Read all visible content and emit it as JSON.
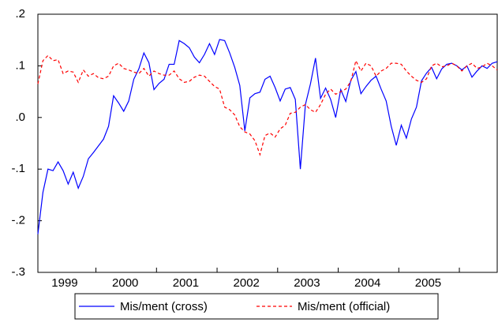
{
  "chart_data": {
    "type": "line",
    "categories": [
      null,
      null,
      null,
      null,
      null,
      "1999",
      null,
      null,
      null,
      null,
      null,
      null,
      null,
      null,
      null,
      null,
      null,
      "2000",
      null,
      null,
      null,
      null,
      null,
      null,
      null,
      null,
      null,
      null,
      null,
      "2001",
      null,
      null,
      null,
      null,
      null,
      null,
      null,
      null,
      null,
      null,
      null,
      "2002",
      null,
      null,
      null,
      null,
      null,
      null,
      null,
      null,
      null,
      null,
      null,
      "2003",
      null,
      null,
      null,
      null,
      null,
      null,
      null,
      null,
      null,
      null,
      null,
      "2004",
      null,
      null,
      null,
      null,
      null,
      null,
      null,
      null,
      null,
      null,
      null,
      "2005",
      null,
      null,
      null,
      null,
      null,
      null,
      null,
      null,
      null,
      null,
      null,
      null,
      null,
      null
    ],
    "series": [
      {
        "name": "Mis/ment (cross)",
        "color": "#0000ff",
        "dash": false,
        "values": [
          -0.226,
          -0.145,
          -0.1,
          -0.103,
          -0.086,
          -0.103,
          -0.129,
          -0.106,
          -0.137,
          -0.114,
          -0.08,
          -0.068,
          -0.055,
          -0.042,
          -0.017,
          0.042,
          0.028,
          0.012,
          0.032,
          0.074,
          0.094,
          0.125,
          0.106,
          0.054,
          0.066,
          0.074,
          0.103,
          0.103,
          0.149,
          0.143,
          0.135,
          0.117,
          0.106,
          0.122,
          0.143,
          0.122,
          0.151,
          0.149,
          0.125,
          0.097,
          0.062,
          -0.026,
          0.038,
          0.046,
          0.049,
          0.074,
          0.08,
          0.058,
          0.032,
          0.055,
          0.058,
          0.035,
          -0.1,
          0.025,
          0.065,
          0.115,
          0.037,
          0.057,
          0.035,
          0,
          0.054,
          0.031,
          0.072,
          0.089,
          0.046,
          0.06,
          0.072,
          0.08,
          0.055,
          0.032,
          -0.017,
          -0.054,
          -0.015,
          -0.04,
          -0.003,
          0.02,
          0.071,
          0.086,
          0.097,
          0.075,
          0.094,
          0.103,
          0.105,
          0.1,
          0.092,
          0.1,
          0.078,
          0.09,
          0.1,
          0.095,
          0.105,
          0.108
        ]
      },
      {
        "name": "Mis/ment (official)",
        "color": "#ff0000",
        "dash": true,
        "values": [
          0.065,
          0.11,
          0.12,
          0.11,
          0.112,
          0.085,
          0.09,
          0.088,
          0.068,
          0.092,
          0.08,
          0.085,
          0.077,
          0.075,
          0.08,
          0.1,
          0.105,
          0.095,
          0.092,
          0.088,
          0.085,
          0.095,
          0.08,
          0.09,
          0.085,
          0.082,
          0.082,
          0.09,
          0.075,
          0.068,
          0.07,
          0.078,
          0.082,
          0.08,
          0.07,
          0.06,
          0.055,
          0.02,
          0.015,
          0.005,
          -0.018,
          -0.028,
          -0.032,
          -0.045,
          -0.072,
          -0.035,
          -0.03,
          -0.038,
          -0.022,
          -0.015,
          0.008,
          0.01,
          0.02,
          0.025,
          0.015,
          0.01,
          0.025,
          0.045,
          0.055,
          0.045,
          0.05,
          0.055,
          0.07,
          0.11,
          0.09,
          0.105,
          0.1,
          0.08,
          0.09,
          0.095,
          0.105,
          0.105,
          0.103,
          0.09,
          0.08,
          0.072,
          0.068,
          0.075,
          0.1,
          0.105,
          0.098,
          0.1,
          0.105,
          0.1,
          0.09,
          0.1,
          0.105,
          0.095,
          0.098,
          0.105,
          0.1,
          0.092
        ]
      }
    ],
    "ylim": [
      -0.3,
      0.2
    ],
    "yticks": [
      {
        "value": -0.3,
        "label": "-.3"
      },
      {
        "value": -0.2,
        "label": "-.2"
      },
      {
        "value": -0.1,
        "label": "-.1"
      },
      {
        "value": 0,
        "label": ".0"
      },
      {
        "value": 0.1,
        "label": ".1"
      },
      {
        "value": 0.2,
        "label": ".2"
      }
    ],
    "legend": "bottom"
  }
}
